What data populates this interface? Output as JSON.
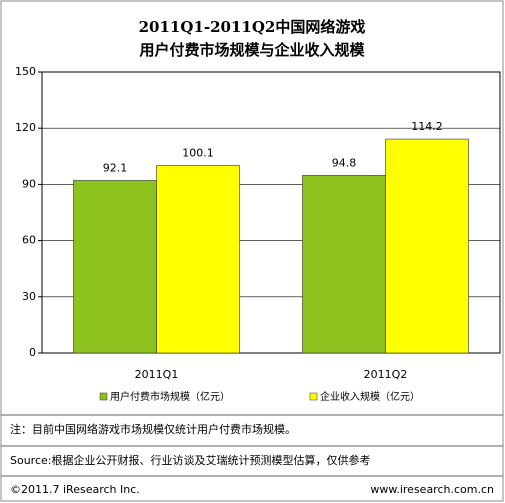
{
  "chart_data": {
    "type": "bar",
    "title_lines": [
      "2011Q1-2011Q2中国网络游戏",
      "用户付费市场规模与企业收入规模"
    ],
    "categories": [
      "2011Q1",
      "2011Q2"
    ],
    "series": [
      {
        "name": "用户付费市场规模（亿元）",
        "color": "#8dc21f",
        "values": [
          92.1,
          94.8
        ]
      },
      {
        "name": "企业收入规模（亿元）",
        "color": "#ffff00",
        "values": [
          100.1,
          114.2
        ]
      }
    ],
    "ylim": [
      0,
      150
    ],
    "yticks": [
      0,
      30,
      60,
      90,
      120,
      150
    ],
    "grid": true,
    "note": "注：目前中国网络游戏市场规模仅统计用户付费市场规模。",
    "source": "Source:根据企业公开财报、行业访谈及艾瑞统计预测模型估算，仅供参考",
    "copyright": "©2011.7 iResearch Inc.",
    "website": "www.iresearch.com.cn"
  }
}
